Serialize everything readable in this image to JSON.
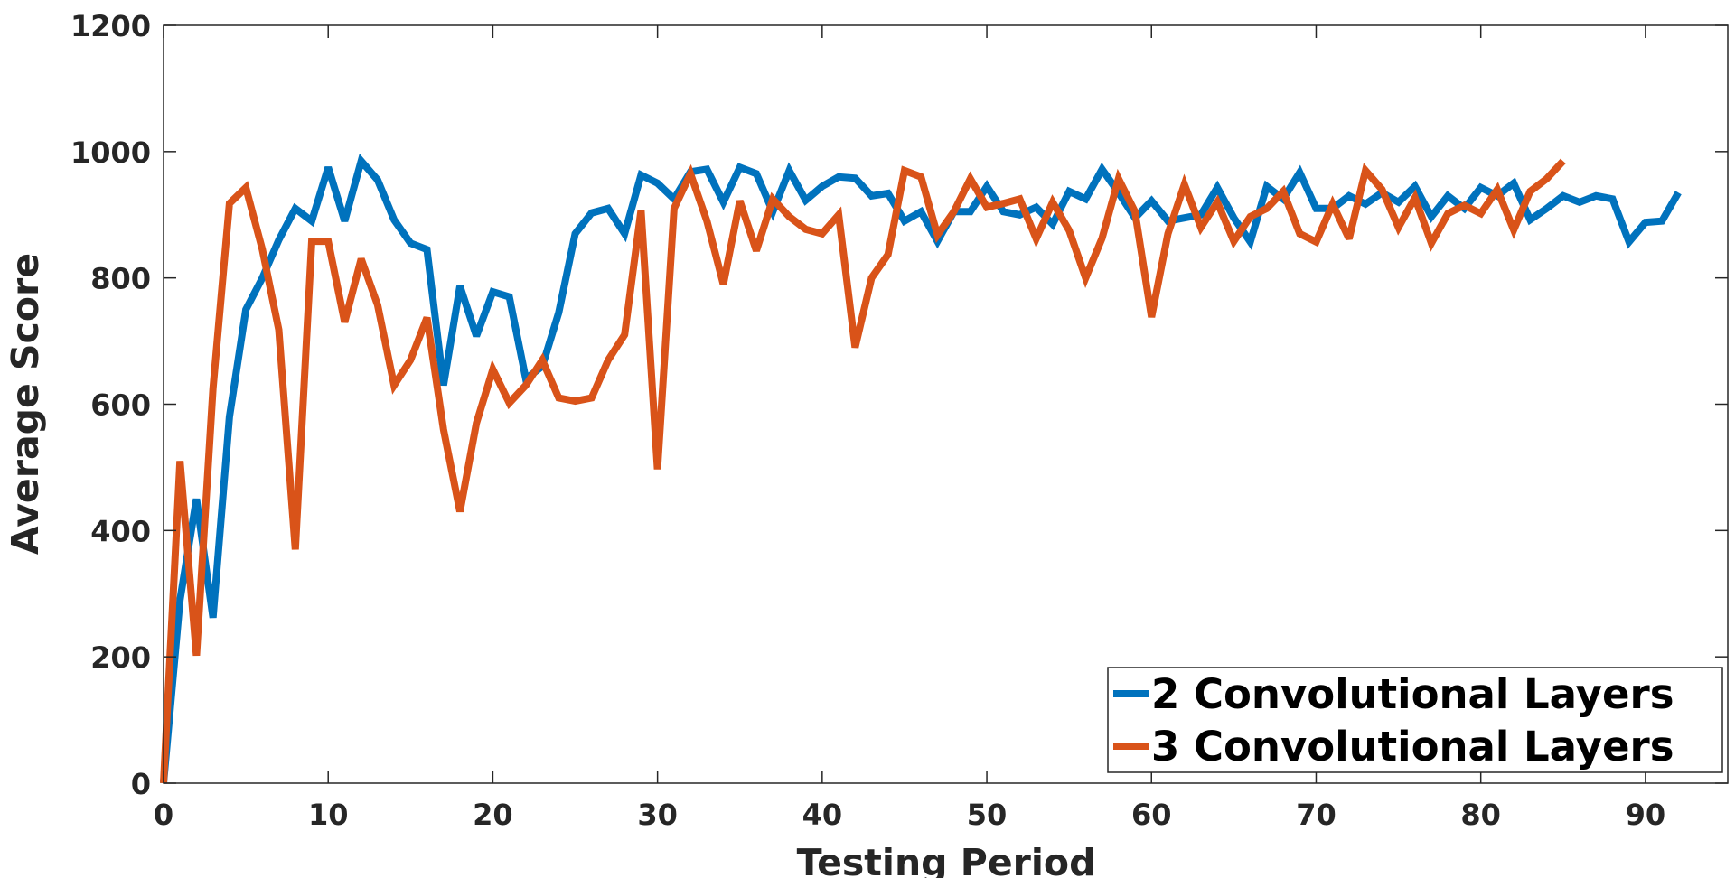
{
  "chart_data": {
    "type": "line",
    "title": "",
    "xlabel": "Testing Period",
    "ylabel": "Average Score",
    "xlim": [
      0,
      95
    ],
    "ylim": [
      0,
      1200
    ],
    "xticks": [
      0,
      10,
      20,
      30,
      40,
      50,
      60,
      70,
      80,
      90
    ],
    "yticks": [
      0,
      200,
      400,
      600,
      800,
      1000,
      1200
    ],
    "grid": false,
    "legend_position": "bottom-right",
    "series": [
      {
        "name": "2 Convolutional Layers",
        "color": "#0072BD",
        "x": [
          0,
          1,
          2,
          3,
          4,
          5,
          6,
          7,
          8,
          9,
          10,
          11,
          12,
          13,
          14,
          15,
          16,
          17,
          18,
          19,
          20,
          21,
          22,
          23,
          24,
          25,
          26,
          27,
          28,
          29,
          30,
          31,
          32,
          33,
          34,
          35,
          36,
          37,
          38,
          39,
          40,
          41,
          42,
          43,
          44,
          45,
          46,
          47,
          48,
          49,
          50,
          51,
          52,
          53,
          54,
          55,
          56,
          57,
          58,
          59,
          60,
          61,
          62,
          63,
          64,
          65,
          66,
          67,
          68,
          69,
          70,
          71,
          72,
          73,
          74,
          75,
          76,
          77,
          78,
          79,
          80,
          81,
          82,
          83,
          84,
          85,
          86,
          87,
          88,
          89,
          90,
          91,
          92
        ],
        "values": [
          0,
          290,
          450,
          262,
          580,
          750,
          800,
          860,
          910,
          890,
          975,
          890,
          985,
          955,
          892,
          855,
          845,
          630,
          787,
          708,
          778,
          770,
          640,
          660,
          745,
          870,
          903,
          910,
          870,
          963,
          950,
          925,
          968,
          972,
          920,
          975,
          965,
          905,
          970,
          923,
          945,
          960,
          958,
          930,
          934,
          890,
          905,
          858,
          905,
          905,
          945,
          905,
          900,
          912,
          885,
          937,
          925,
          972,
          935,
          895,
          922,
          890,
          895,
          900,
          943,
          895,
          857,
          945,
          925,
          967,
          910,
          910,
          930,
          917,
          935,
          920,
          945,
          897,
          930,
          910,
          943,
          930,
          950,
          892,
          910,
          930,
          920,
          930,
          925,
          857,
          888,
          890,
          935
        ]
      },
      {
        "name": "3 Convolutional Layers",
        "color": "#D95319",
        "x": [
          0,
          1,
          2,
          3,
          4,
          5,
          6,
          7,
          8,
          9,
          10,
          11,
          12,
          13,
          14,
          15,
          16,
          17,
          18,
          19,
          20,
          21,
          22,
          23,
          24,
          25,
          26,
          27,
          28,
          29,
          30,
          31,
          32,
          33,
          34,
          35,
          36,
          37,
          38,
          39,
          40,
          41,
          42,
          43,
          44,
          45,
          46,
          47,
          48,
          49,
          50,
          51,
          52,
          53,
          54,
          55,
          56,
          57,
          58,
          59,
          60,
          61,
          62,
          63,
          64,
          65,
          66,
          67,
          68,
          69,
          70,
          71,
          72,
          73,
          74,
          75,
          76,
          77,
          78,
          79,
          80,
          81,
          82,
          83,
          84,
          85
        ],
        "values": [
          0,
          510,
          202,
          625,
          918,
          943,
          845,
          718,
          370,
          858,
          858,
          730,
          830,
          757,
          630,
          670,
          737,
          560,
          430,
          570,
          655,
          602,
          630,
          670,
          610,
          605,
          610,
          670,
          710,
          907,
          497,
          910,
          965,
          890,
          790,
          922,
          843,
          925,
          897,
          877,
          870,
          900,
          690,
          800,
          837,
          970,
          960,
          868,
          905,
          957,
          912,
          918,
          925,
          862,
          920,
          875,
          800,
          863,
          957,
          905,
          738,
          870,
          948,
          880,
          920,
          858,
          897,
          910,
          937,
          870,
          857,
          917,
          862,
          970,
          940,
          880,
          927,
          855,
          902,
          915,
          902,
          940,
          876,
          937,
          957,
          985
        ]
      }
    ]
  }
}
